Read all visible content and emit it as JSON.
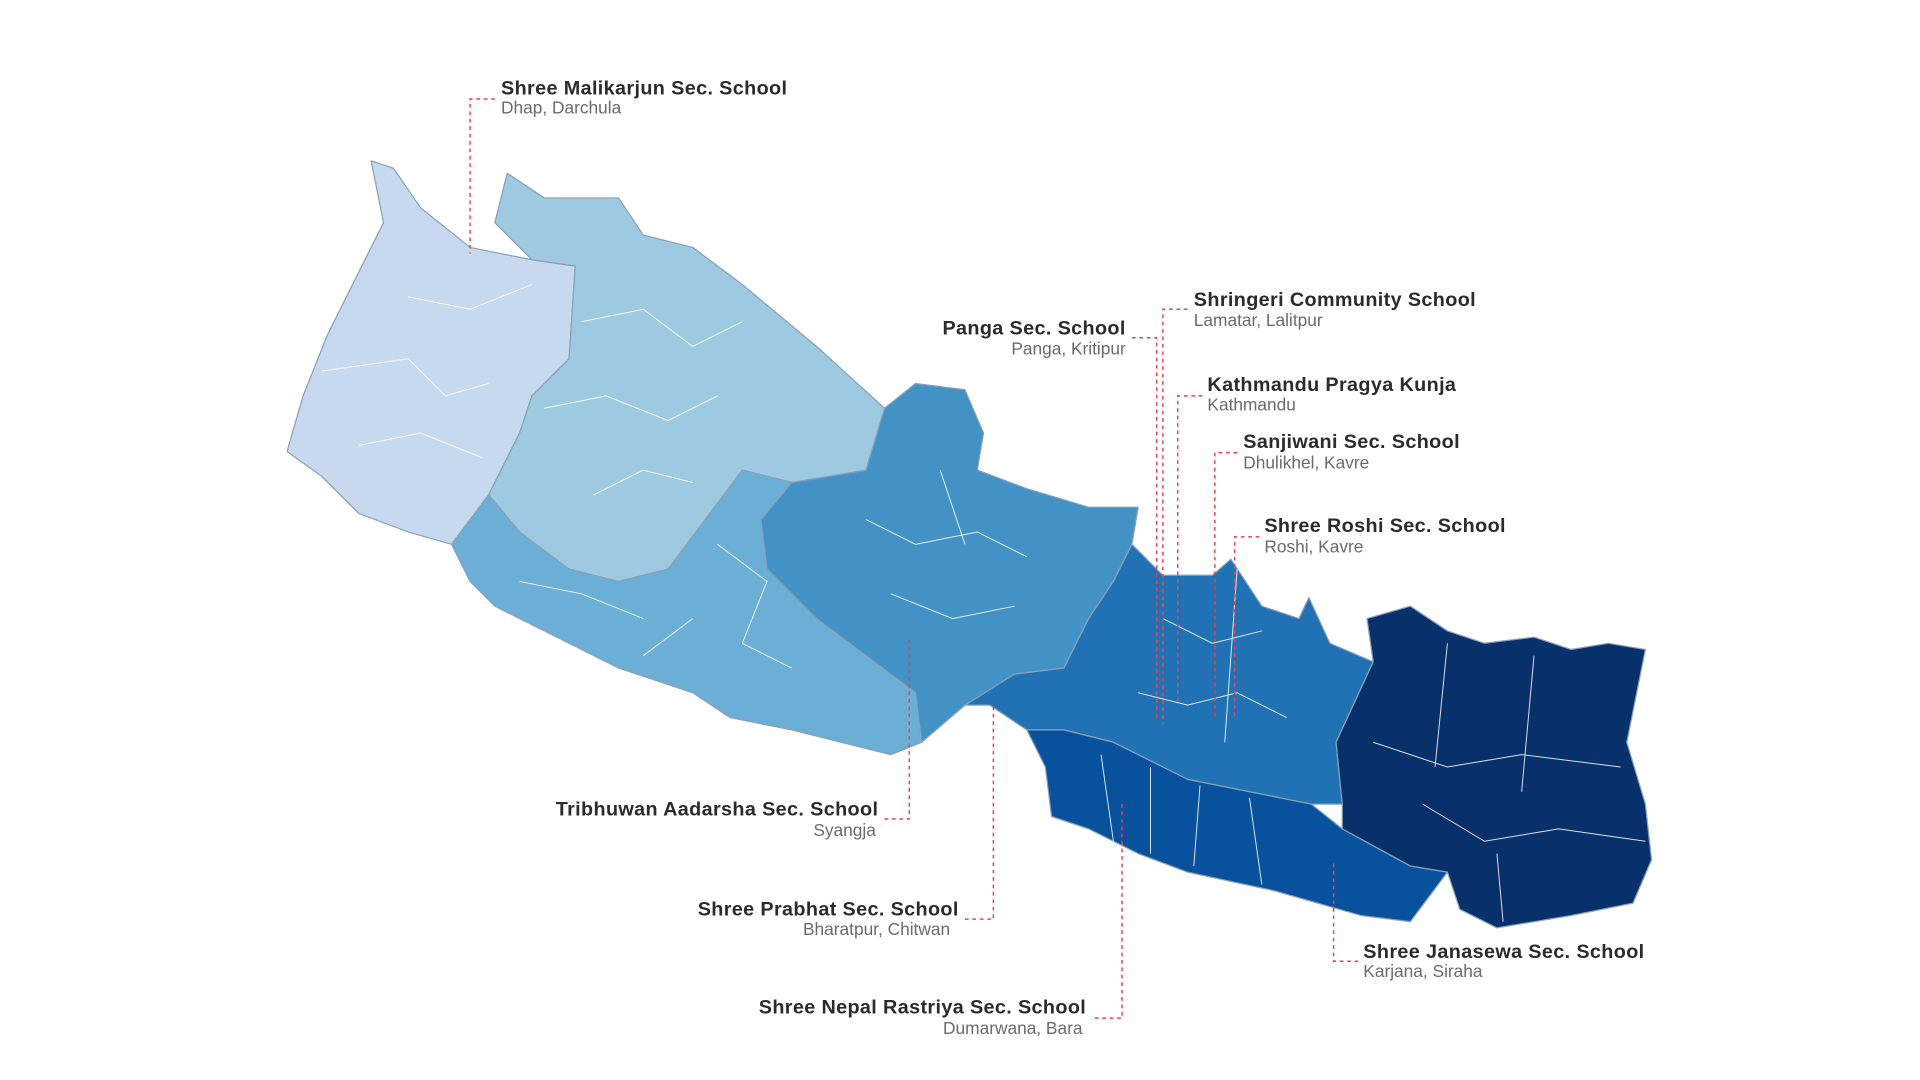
{
  "schools": [
    {
      "name": "Shree Malikarjun Sec. School",
      "location": "Dhap, Darchula"
    },
    {
      "name": "Panga Sec. School",
      "location": "Panga, Kritipur"
    },
    {
      "name": "Shringeri Community School",
      "location": "Lamatar, Lalitpur"
    },
    {
      "name": "Kathmandu Pragya Kunja",
      "location": "Kathmandu"
    },
    {
      "name": "Sanjiwani Sec. School",
      "location": "Dhulikhel, Kavre"
    },
    {
      "name": "Shree Roshi Sec. School",
      "location": "Roshi, Kavre"
    },
    {
      "name": "Tribhuwan Aadarsha Sec. School",
      "location": "Syangja"
    },
    {
      "name": "Shree Prabhat Sec. School",
      "location": "Bharatpur, Chitwan"
    },
    {
      "name": "Shree Nepal Rastriya Sec. School",
      "location": "Dumarwana, Bara"
    },
    {
      "name": "Shree Janasewa Sec. School",
      "location": "Karjana, Siraha"
    }
  ]
}
